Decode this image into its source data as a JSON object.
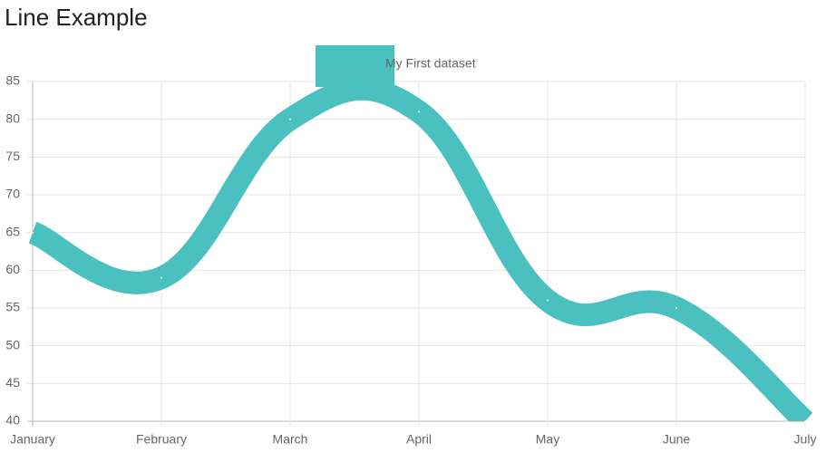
{
  "chart_data": {
    "type": "line",
    "title": "Line Example",
    "categories": [
      "January",
      "February",
      "March",
      "April",
      "May",
      "June",
      "July"
    ],
    "series": [
      {
        "name": "My First dataset",
        "color": "#4bc0c0",
        "values": [
          65,
          59,
          80,
          81,
          56,
          55,
          40
        ]
      }
    ],
    "ylim": [
      40,
      85
    ],
    "yticks": [
      40,
      45,
      50,
      55,
      60,
      65,
      70,
      75,
      80,
      85
    ],
    "grid": true,
    "legend": "top"
  }
}
